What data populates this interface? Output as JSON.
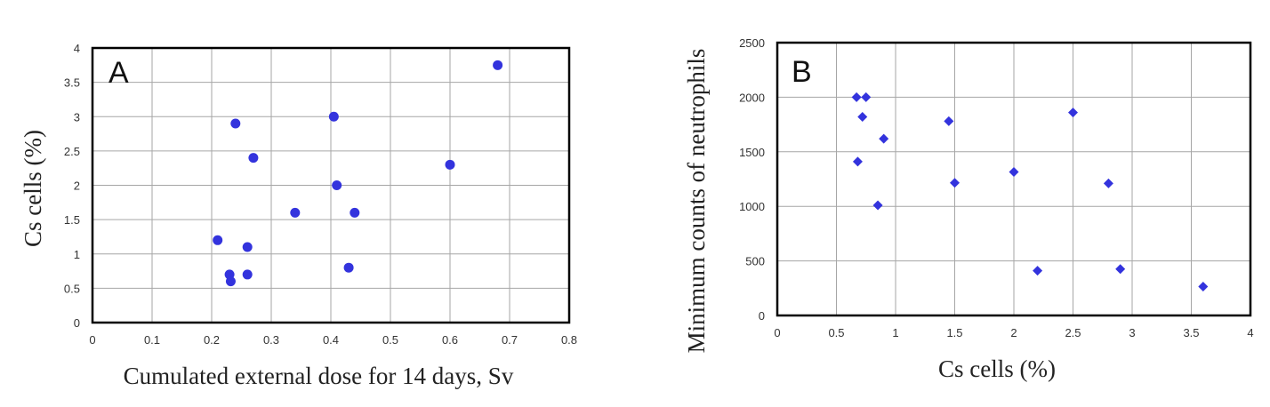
{
  "chart_data": [
    {
      "type": "scatter",
      "panel_label": "A",
      "xlabel": "Cumulated  external dose for 14 days, Sv",
      "ylabel": "Cs cells (%)",
      "xlim": [
        0,
        0.8
      ],
      "ylim": [
        0,
        4
      ],
      "xticks": [
        0,
        0.1,
        0.2,
        0.3,
        0.4,
        0.5,
        0.6,
        0.7,
        0.8
      ],
      "yticks": [
        0,
        0.5,
        1,
        1.5,
        2,
        2.5,
        3,
        3.5,
        4
      ],
      "xtick_labels": [
        "0",
        "0.1",
        "0.2",
        "0.3",
        "0.4",
        "0.5",
        "0.6",
        "0.7",
        "0.8"
      ],
      "ytick_labels": [
        "0",
        "0.5",
        "1",
        "1.5",
        "2",
        "2.5",
        "3",
        "3.5",
        "4"
      ],
      "grid": true,
      "marker": "circle",
      "color": "#3333dd",
      "points": [
        {
          "x": 0.21,
          "y": 1.2
        },
        {
          "x": 0.23,
          "y": 0.7
        },
        {
          "x": 0.232,
          "y": 0.6
        },
        {
          "x": 0.24,
          "y": 2.9
        },
        {
          "x": 0.26,
          "y": 1.1
        },
        {
          "x": 0.26,
          "y": 0.7
        },
        {
          "x": 0.27,
          "y": 2.4
        },
        {
          "x": 0.34,
          "y": 1.6
        },
        {
          "x": 0.405,
          "y": 3.0
        },
        {
          "x": 0.41,
          "y": 2.0
        },
        {
          "x": 0.43,
          "y": 0.8
        },
        {
          "x": 0.44,
          "y": 1.6
        },
        {
          "x": 0.6,
          "y": 2.3
        },
        {
          "x": 0.68,
          "y": 3.75
        }
      ]
    },
    {
      "type": "scatter",
      "panel_label": "B",
      "xlabel": "Cs cells (%)",
      "ylabel": "Minimum counts of neutrophils",
      "xlim": [
        0,
        4
      ],
      "ylim": [
        0,
        2500
      ],
      "xticks": [
        0,
        0.5,
        1,
        1.5,
        2,
        2.5,
        3,
        3.5,
        4
      ],
      "yticks": [
        0,
        500,
        1000,
        1500,
        2000,
        2500
      ],
      "xtick_labels": [
        "0",
        "0.5",
        "1",
        "1.5",
        "2",
        "2.5",
        "3",
        "3.5",
        "4"
      ],
      "ytick_labels": [
        "0",
        "500",
        "1000",
        "1500",
        "2000",
        "2500"
      ],
      "grid": true,
      "marker": "diamond",
      "color": "#3333dd",
      "points": [
        {
          "x": 0.67,
          "y": 2000
        },
        {
          "x": 0.75,
          "y": 2000
        },
        {
          "x": 0.72,
          "y": 1820
        },
        {
          "x": 0.9,
          "y": 1620
        },
        {
          "x": 0.68,
          "y": 1410
        },
        {
          "x": 0.85,
          "y": 1010
        },
        {
          "x": 1.45,
          "y": 1780
        },
        {
          "x": 1.5,
          "y": 1215
        },
        {
          "x": 2.0,
          "y": 1315
        },
        {
          "x": 2.2,
          "y": 410
        },
        {
          "x": 2.5,
          "y": 1860
        },
        {
          "x": 2.8,
          "y": 1210
        },
        {
          "x": 2.9,
          "y": 425
        },
        {
          "x": 3.6,
          "y": 265
        }
      ]
    }
  ]
}
